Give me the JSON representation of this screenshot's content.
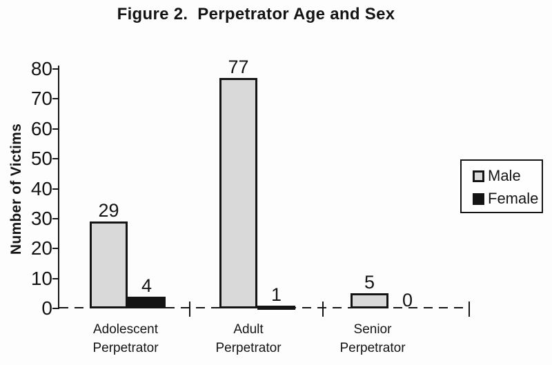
{
  "chart_data": {
    "type": "bar",
    "title": "Figure 2.  Perpetrator Age and Sex",
    "ylabel": "Number of Victims",
    "xlabel": "",
    "categories": [
      "Adolescent\nPerpetrator",
      "Adult\nPerpetrator",
      "Senior\nPerpetrator"
    ],
    "series": [
      {
        "name": "Male",
        "values": [
          29,
          77,
          5
        ],
        "fill": "#d9d9d9",
        "border": "#141414"
      },
      {
        "name": "Female",
        "values": [
          4,
          1,
          0
        ],
        "fill": "#141414",
        "border": "#141414"
      }
    ],
    "ylim": [
      0,
      80
    ],
    "yticks": [
      0,
      10,
      20,
      30,
      40,
      50,
      60,
      70,
      80
    ],
    "data_labels": true,
    "legend_position": "right",
    "grid": false,
    "baseline_style": "dashed",
    "axis_color": "#141414",
    "background_color": "#fdfdfd"
  }
}
